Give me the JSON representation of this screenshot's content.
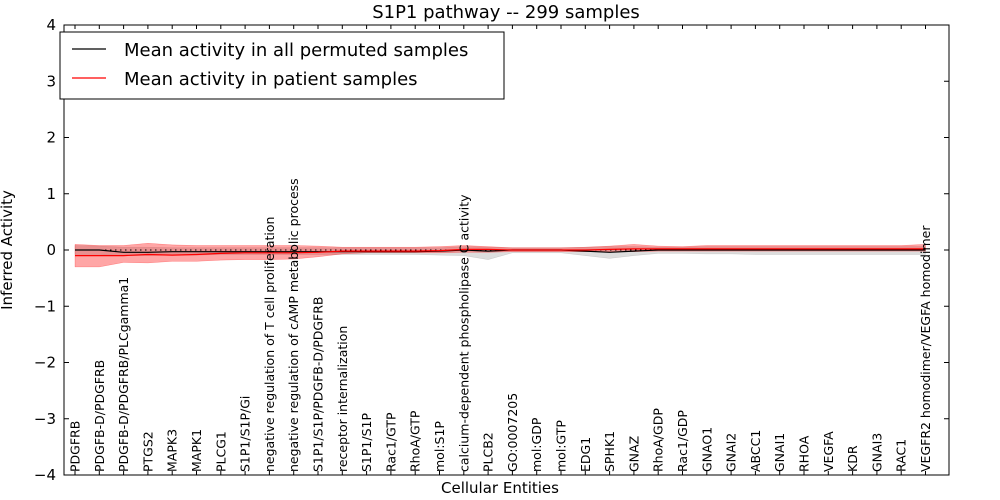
{
  "chart_data": {
    "type": "line",
    "title": "S1P1 pathway -- 299 samples",
    "xlabel": "Cellular Entities",
    "ylabel": "Inferred Activity",
    "ylim": [
      -4,
      4
    ],
    "yticks": [
      -4,
      -3,
      -2,
      -1,
      0,
      1,
      2,
      3,
      4
    ],
    "ytick_labels": [
      "−4",
      "−3",
      "−2",
      "−1",
      "0",
      "1",
      "2",
      "3",
      "4"
    ],
    "grid": false,
    "legend_position": "top-left",
    "categories": [
      "PDGFRB",
      "PDGFB-D/PDGFRB",
      "PDGFB-D/PDGFRB/PLCgamma1",
      "PTGS2",
      "MAPK3",
      "MAPK1",
      "PLCG1",
      "S1P1/S1P/Gi",
      "negative regulation of T cell proliferation",
      "negative regulation of cAMP metabolic process",
      "S1P1/S1P/PDGFB-D/PDGFRB",
      "receptor internalization",
      "S1P1/S1P",
      "Rac1/GTP",
      "RhoA/GTP",
      "mol:S1P",
      "calcium-dependent phospholipase C activity",
      "PLCB2",
      "GO:0007205",
      "mol:GDP",
      "mol:GTP",
      "EDG1",
      "SPHK1",
      "GNAZ",
      "RhoA/GDP",
      "Rac1/GDP",
      "GNAO1",
      "GNAI2",
      "ABCC1",
      "GNAI1",
      "RHOA",
      "VEGFA",
      "KDR",
      "GNAI3",
      "RAC1",
      "VEGFR2 homodimer/VEGFA homodimer"
    ],
    "series": [
      {
        "name": "Mean activity in all permuted samples",
        "color": "#000000",
        "values": [
          0,
          0,
          -0.04,
          -0.04,
          -0.03,
          -0.03,
          -0.03,
          -0.03,
          -0.03,
          -0.03,
          -0.03,
          -0.03,
          -0.03,
          -0.03,
          -0.03,
          -0.02,
          0,
          -0.02,
          0,
          0,
          0,
          -0.02,
          -0.04,
          -0.02,
          0,
          0,
          0,
          0,
          0,
          0,
          0,
          0,
          0,
          0,
          0,
          0
        ],
        "band_upper": [
          0.08,
          0.07,
          0.05,
          0.05,
          0.04,
          0.04,
          0.04,
          0.04,
          0.04,
          0.04,
          0.04,
          0.04,
          0.04,
          0.04,
          0.04,
          0.04,
          0.06,
          0.05,
          0.04,
          0.04,
          0.04,
          0.05,
          0.06,
          0.06,
          0.05,
          0.05,
          0.06,
          0.06,
          0.06,
          0.06,
          0.06,
          0.06,
          0.06,
          0.06,
          0.06,
          0.06
        ],
        "band_lower": [
          -0.08,
          -0.08,
          -0.1,
          -0.1,
          -0.09,
          -0.09,
          -0.08,
          -0.08,
          -0.08,
          -0.08,
          -0.08,
          -0.08,
          -0.08,
          -0.08,
          -0.08,
          -0.09,
          -0.1,
          -0.17,
          -0.05,
          -0.05,
          -0.05,
          -0.1,
          -0.15,
          -0.1,
          -0.06,
          -0.06,
          -0.07,
          -0.07,
          -0.08,
          -0.08,
          -0.08,
          -0.08,
          -0.08,
          -0.08,
          -0.08,
          -0.08
        ]
      },
      {
        "name": "Mean activity in patient samples",
        "color": "#ff0000",
        "values": [
          -0.1,
          -0.1,
          -0.1,
          -0.08,
          -0.09,
          -0.08,
          -0.06,
          -0.05,
          -0.05,
          -0.05,
          -0.04,
          -0.02,
          -0.02,
          -0.02,
          -0.02,
          -0.01,
          0.01,
          0.01,
          0,
          0,
          0,
          0,
          0.01,
          0.02,
          0.02,
          0.02,
          0.02,
          0.02,
          0.02,
          0.02,
          0.02,
          0.02,
          0.02,
          0.02,
          0.02,
          0.02
        ],
        "band_upper": [
          0.1,
          0.08,
          0.08,
          0.12,
          0.09,
          0.08,
          0.08,
          0.08,
          0.08,
          0.08,
          0.07,
          0.05,
          0.05,
          0.05,
          0.05,
          0.06,
          0.08,
          0.06,
          0.04,
          0.04,
          0.04,
          0.05,
          0.07,
          0.1,
          0.07,
          0.06,
          0.08,
          0.08,
          0.08,
          0.08,
          0.08,
          0.08,
          0.08,
          0.08,
          0.08,
          0.1
        ],
        "band_lower": [
          -0.3,
          -0.3,
          -0.22,
          -0.23,
          -0.2,
          -0.2,
          -0.18,
          -0.17,
          -0.17,
          -0.16,
          -0.12,
          -0.07,
          -0.05,
          -0.05,
          -0.05,
          -0.05,
          -0.04,
          -0.04,
          -0.03,
          -0.03,
          -0.03,
          -0.03,
          -0.03,
          -0.03,
          -0.02,
          -0.02,
          -0.02,
          -0.02,
          -0.02,
          -0.02,
          -0.02,
          -0.02,
          -0.02,
          -0.02,
          -0.02,
          -0.02
        ]
      }
    ]
  }
}
